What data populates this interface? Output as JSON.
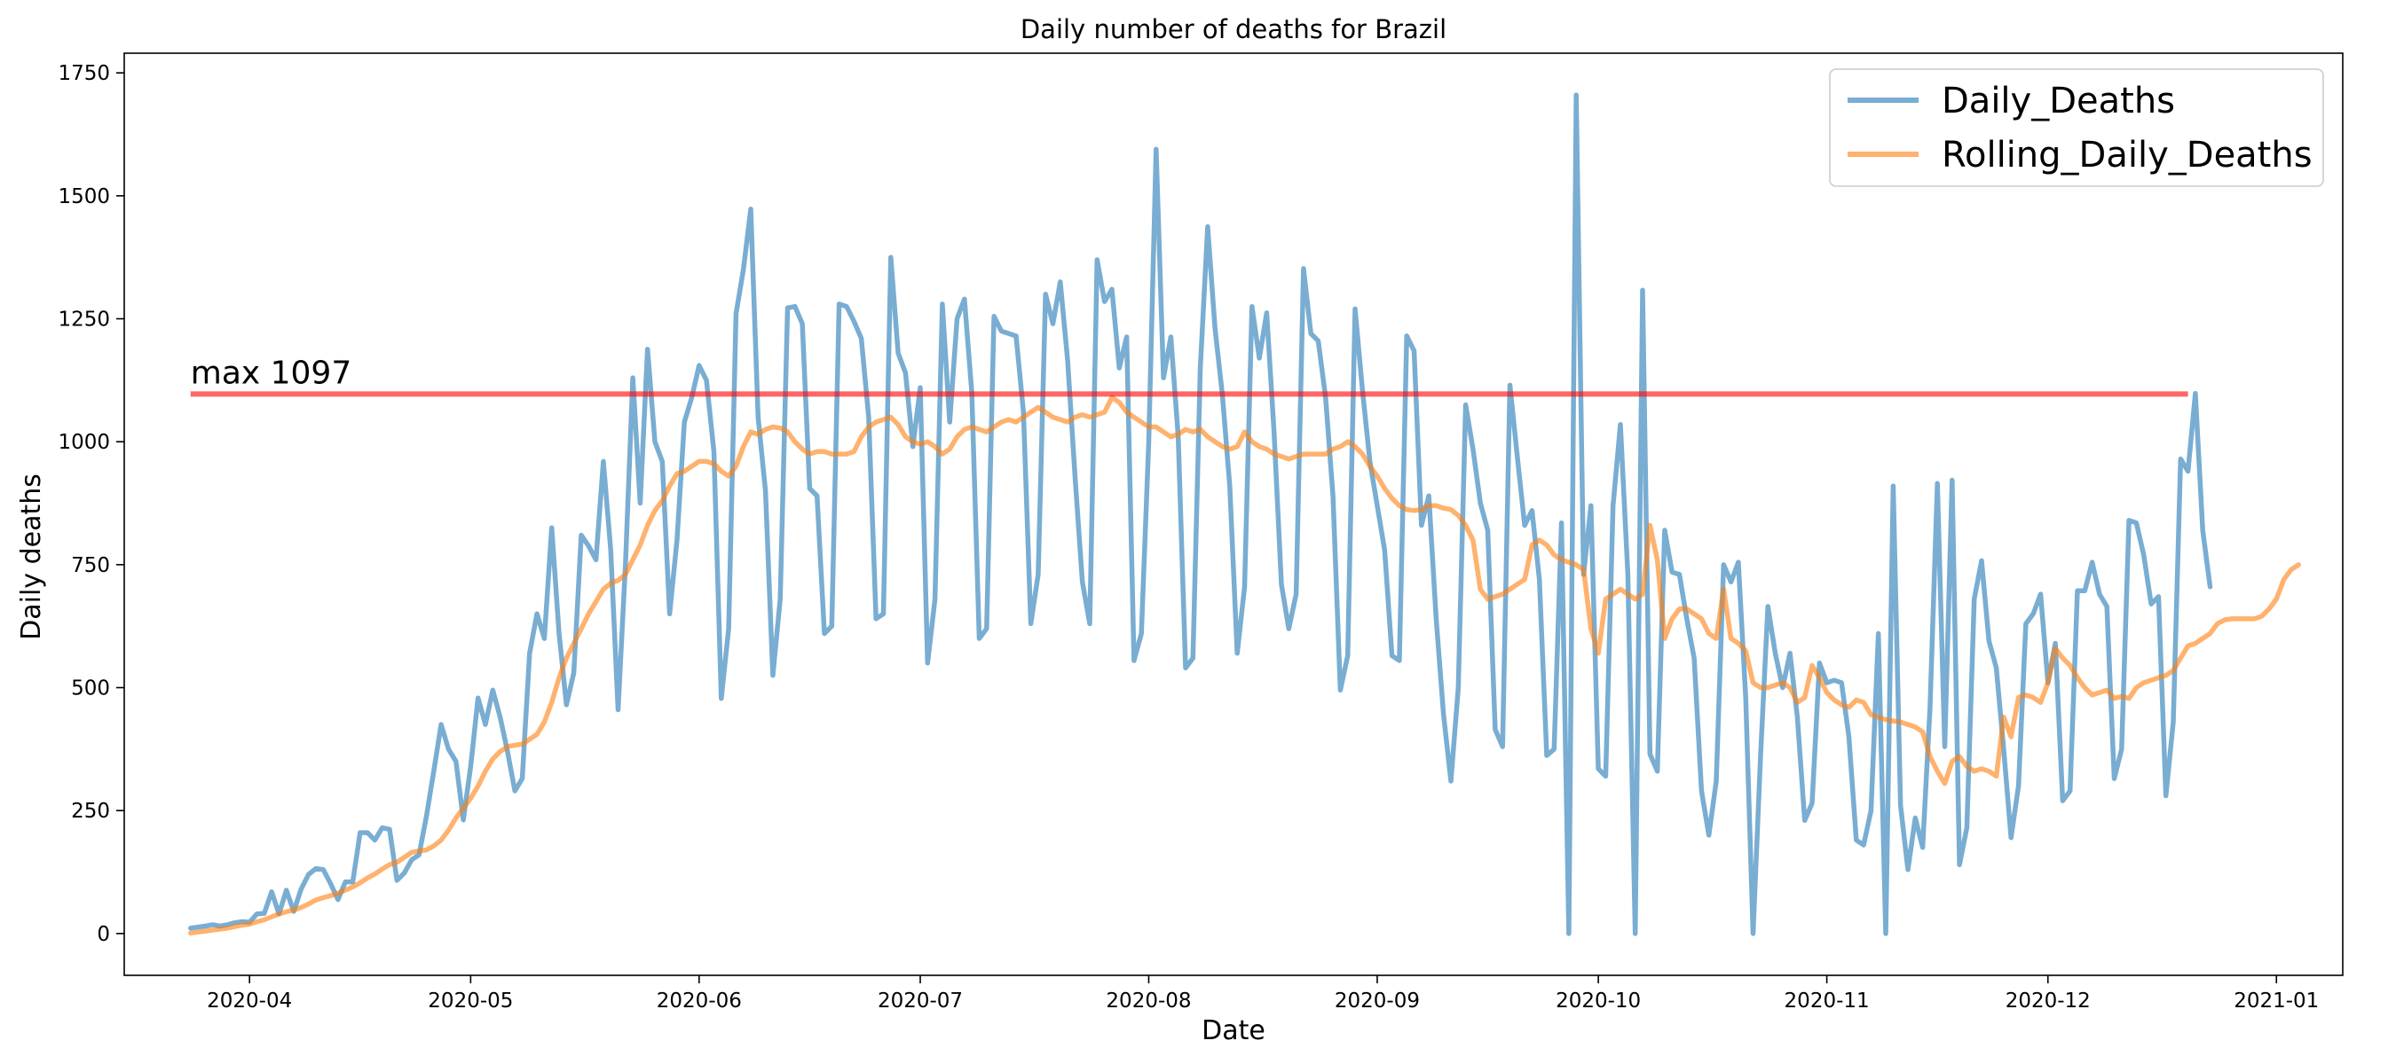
{
  "chart_data": {
    "type": "line",
    "title": "Daily number of deaths for Brazil",
    "xlabel": "Date",
    "ylabel": "Daily deaths",
    "xlim": [
      "2020-03-15",
      "2021-01-10"
    ],
    "ylim": [
      -85,
      1790
    ],
    "x_ticks": [
      "2020-04",
      "2020-05",
      "2020-06",
      "2020-07",
      "2020-08",
      "2020-09",
      "2020-10",
      "2020-11",
      "2020-12",
      "2021-01"
    ],
    "y_ticks": [
      0,
      250,
      500,
      750,
      1000,
      1250,
      1500,
      1750
    ],
    "grid": false,
    "legend_position": "top-right",
    "start_date": "2020-03-24",
    "end_date": "2020-12-20",
    "series": [
      {
        "name": "Daily_Deaths",
        "color": "#1f77b4",
        "values": [
          11,
          13,
          15,
          18,
          15,
          18,
          22,
          24,
          23,
          40,
          41,
          85,
          40,
          88,
          45,
          90,
          120,
          132,
          130,
          101,
          69,
          105,
          105,
          205,
          205,
          190,
          215,
          212,
          108,
          123,
          150,
          160,
          238,
          330,
          425,
          375,
          350,
          231,
          340,
          479,
          425,
          495,
          440,
          370,
          290,
          315,
          570,
          650,
          600,
          825,
          610,
          465,
          530,
          810,
          788,
          760,
          960,
          780,
          455,
          750,
          1130,
          875,
          1188,
          1000,
          960,
          650,
          800,
          1040,
          1090,
          1155,
          1125,
          980,
          478,
          620,
          1260,
          1350,
          1473,
          1050,
          900,
          525,
          680,
          1272,
          1275,
          1240,
          905,
          890,
          610,
          625,
          1280,
          1275,
          1245,
          1210,
          1050,
          640,
          650,
          1375,
          1180,
          1140,
          990,
          1110,
          550,
          680,
          1280,
          1040,
          1250,
          1290,
          1100,
          600,
          620,
          1255,
          1225,
          1220,
          1215,
          1060,
          630,
          730,
          1300,
          1240,
          1325,
          1165,
          930,
          715,
          630,
          1370,
          1285,
          1310,
          1150,
          1213,
          555,
          610,
          1000,
          1595,
          1130,
          1213,
          1010,
          540,
          560,
          1150,
          1437,
          1230,
          1095,
          910,
          570,
          705,
          1275,
          1170,
          1262,
          1020,
          710,
          620,
          690,
          1352,
          1220,
          1205,
          1090,
          890,
          495,
          565,
          1270,
          1105,
          960,
          870,
          780,
          565,
          555,
          1215,
          1185,
          830,
          890,
          640,
          445,
          310,
          500,
          1075,
          985,
          875,
          820,
          415,
          380,
          1115,
          970,
          830,
          860,
          720,
          362,
          375,
          835,
          0,
          1705,
          730,
          870,
          335,
          320,
          870,
          1035,
          730,
          0,
          1308,
          365,
          330,
          820,
          735,
          730,
          640,
          560,
          290,
          200,
          310,
          750,
          715,
          755,
          480,
          0,
          360,
          665,
          570,
          500,
          570,
          440,
          230,
          265,
          550,
          510,
          515,
          510,
          400,
          190,
          180,
          250,
          610,
          0,
          910,
          260,
          130,
          235,
          175,
          460,
          915,
          380,
          922,
          140,
          215,
          680,
          758,
          595,
          540,
          375,
          195,
          300,
          630,
          650,
          690,
          510,
          590,
          270,
          290,
          697,
          697,
          755,
          690,
          665,
          315,
          375,
          840,
          835,
          770,
          670,
          685,
          280,
          430,
          965,
          940,
          1098,
          820,
          705
        ]
      },
      {
        "name": "Rolling_Daily_Deaths",
        "color": "#ff7f0e",
        "values": [
          1,
          3,
          5,
          7,
          9,
          11,
          14,
          17,
          19,
          24,
          28,
          34,
          40,
          44,
          48,
          53,
          60,
          68,
          73,
          77,
          82,
          88,
          95,
          103,
          113,
          121,
          131,
          140,
          145,
          155,
          165,
          168,
          170,
          178,
          190,
          210,
          235,
          255,
          275,
          300,
          330,
          355,
          370,
          380,
          383,
          385,
          395,
          405,
          430,
          470,
          520,
          560,
          590,
          620,
          650,
          675,
          700,
          712,
          718,
          730,
          760,
          790,
          830,
          860,
          880,
          910,
          935,
          940,
          950,
          960,
          960,
          955,
          940,
          930,
          950,
          990,
          1020,
          1015,
          1025,
          1030,
          1028,
          1020,
          1000,
          985,
          975,
          980,
          980,
          975,
          975,
          975,
          980,
          1010,
          1030,
          1040,
          1045,
          1050,
          1035,
          1010,
          1000,
          995,
          1000,
          990,
          975,
          985,
          1010,
          1025,
          1030,
          1025,
          1020,
          1030,
          1040,
          1045,
          1040,
          1050,
          1060,
          1070,
          1060,
          1050,
          1045,
          1040,
          1050,
          1055,
          1050,
          1055,
          1060,
          1090,
          1080,
          1060,
          1050,
          1040,
          1030,
          1030,
          1020,
          1010,
          1015,
          1025,
          1020,
          1025,
          1010,
          1000,
          990,
          985,
          990,
          1020,
          1000,
          990,
          985,
          975,
          970,
          965,
          970,
          975,
          975,
          975,
          975,
          985,
          990,
          1000,
          990,
          975,
          950,
          930,
          905,
          885,
          870,
          862,
          860,
          862,
          870,
          870,
          865,
          862,
          850,
          830,
          800,
          700,
          680,
          685,
          690,
          700,
          710,
          720,
          790,
          800,
          790,
          770,
          760,
          755,
          750,
          740,
          620,
          570,
          680,
          690,
          700,
          690,
          680,
          690,
          830,
          760,
          600,
          640,
          660,
          660,
          650,
          640,
          610,
          600,
          700,
          600,
          590,
          575,
          510,
          500,
          500,
          505,
          510,
          500,
          470,
          480,
          545,
          520,
          490,
          475,
          465,
          460,
          475,
          470,
          445,
          440,
          435,
          432,
          430,
          425,
          420,
          410,
          360,
          330,
          305,
          350,
          360,
          340,
          330,
          335,
          330,
          320,
          440,
          400,
          480,
          485,
          480,
          470,
          510,
          580,
          560,
          545,
          520,
          500,
          485,
          490,
          495,
          478,
          482,
          478,
          500,
          510,
          515,
          520,
          525,
          535,
          560,
          585,
          590,
          600,
          610,
          630,
          638,
          640,
          640,
          640,
          640,
          645,
          660,
          680,
          720,
          740,
          750
        ]
      },
      {
        "name": "max 1097",
        "color": "#ff0000",
        "value": 1097,
        "x_range": [
          "2020-03-24",
          "2020-12-20"
        ]
      }
    ],
    "annotations": [
      {
        "text": "max 1097",
        "x": "2020-03-24",
        "y": 1097
      }
    ]
  }
}
